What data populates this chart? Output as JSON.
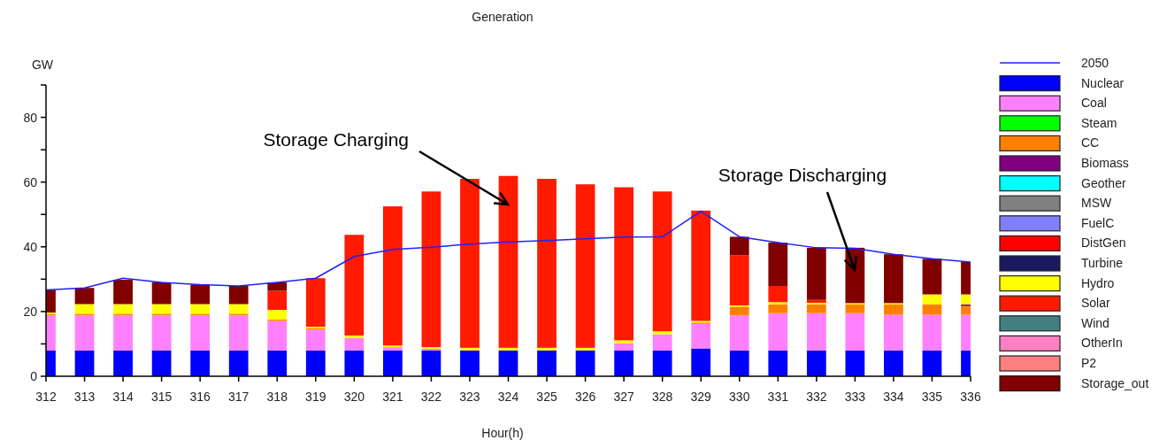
{
  "chart_data": {
    "type": "bar",
    "stacked": true,
    "title": "Generation",
    "xlabel": "Hour(h)",
    "ylabel": "GW",
    "categories": [
      "312",
      "313",
      "314",
      "315",
      "316",
      "317",
      "318",
      "319",
      "320",
      "321",
      "322",
      "323",
      "324",
      "325",
      "326",
      "327",
      "328",
      "329",
      "330",
      "331",
      "332",
      "333",
      "334",
      "335",
      "336"
    ],
    "ylim": [
      0,
      90
    ],
    "yticks": [
      0,
      {
        "value": 10,
        "label": null
      },
      20,
      {
        "value": 30,
        "label": null
      },
      40,
      {
        "value": 50,
        "label": null
      },
      60,
      {
        "value": 70,
        "label": null
      },
      80,
      {
        "value": 90,
        "label": null
      }
    ],
    "grid": false,
    "legend": "right",
    "series": [
      {
        "type": "line",
        "name": "2050",
        "color": "#2020ff",
        "values": [
          26.7,
          27.3,
          30.3,
          29.0,
          28.3,
          27.9,
          29.0,
          30.3,
          37.0,
          39.2,
          39.9,
          40.8,
          41.5,
          41.9,
          42.5,
          43.0,
          43.1,
          51.0,
          43.1,
          41.3,
          39.7,
          39.5,
          37.7,
          36.3,
          35.3
        ]
      },
      {
        "name": "Nuclear",
        "color": "#0000ff",
        "values": [
          8,
          8,
          8,
          8,
          8,
          8,
          8,
          8,
          8,
          8,
          8,
          8,
          8,
          8,
          8,
          8,
          8,
          8.6,
          8,
          8,
          8,
          8,
          8,
          8,
          8
        ]
      },
      {
        "name": "Coal",
        "color": "#ff80ff",
        "values": [
          10.8,
          10.8,
          10.8,
          10.8,
          10.8,
          10.8,
          9.1,
          6.4,
          3.8,
          1.0,
          0.5,
          0,
          0,
          0,
          0,
          2.2,
          5.0,
          7.6,
          10.8,
          11.5,
          11.5,
          11.5,
          11.0,
          11.0,
          11.0
        ]
      },
      {
        "name": "Steam",
        "color": "#00ff00",
        "values": [
          0,
          0,
          0,
          0,
          0,
          0,
          0,
          0,
          0,
          0,
          0,
          0,
          0,
          0,
          0,
          0,
          0,
          0,
          0,
          0,
          0,
          0,
          0,
          0,
          0
        ]
      },
      {
        "name": "CC",
        "color": "#ff8000",
        "values": [
          0.4,
          0.5,
          0.5,
          0.5,
          0.5,
          0.5,
          0.4,
          0.4,
          0,
          0,
          0,
          0,
          0,
          0,
          0,
          0,
          0,
          0.4,
          2.7,
          2.7,
          2.7,
          2.7,
          3.2,
          3.2,
          2.7
        ]
      },
      {
        "name": "Biomass",
        "color": "#800080",
        "values": [
          0,
          0,
          0,
          0,
          0,
          0,
          0,
          0,
          0,
          0,
          0,
          0,
          0,
          0,
          0,
          0,
          0,
          0,
          0,
          0,
          0,
          0,
          0,
          0,
          0.5
        ]
      },
      {
        "name": "Geother",
        "color": "#00ffff",
        "values": [
          0,
          0,
          0,
          0,
          0,
          0,
          0,
          0,
          0,
          0,
          0,
          0,
          0,
          0,
          0,
          0,
          0,
          0,
          0,
          0,
          0,
          0,
          0,
          0,
          0
        ]
      },
      {
        "name": "MSW",
        "color": "#808080",
        "values": [
          0,
          0,
          0,
          0,
          0,
          0,
          0,
          0,
          0,
          0,
          0,
          0,
          0,
          0,
          0,
          0,
          0,
          0,
          0,
          0,
          0,
          0,
          0,
          0,
          0
        ]
      },
      {
        "name": "FuelC",
        "color": "#8080ff",
        "values": [
          0,
          0,
          0,
          0,
          0,
          0,
          0,
          0,
          0,
          0,
          0,
          0,
          0,
          0,
          0,
          0,
          0,
          0,
          0,
          0,
          0,
          0,
          0,
          0,
          0
        ]
      },
      {
        "name": "DistGen",
        "color": "#ff0000",
        "values": [
          0,
          0,
          0,
          0,
          0,
          0,
          0,
          0,
          0,
          0,
          0,
          0,
          0,
          0,
          0,
          0,
          0,
          0,
          0,
          0,
          0,
          0,
          0,
          0,
          0
        ]
      },
      {
        "name": "Turbine",
        "color": "#1a1a60",
        "values": [
          0,
          0,
          0,
          0,
          0,
          0,
          0,
          0,
          0,
          0,
          0,
          0,
          0,
          0,
          0,
          0,
          0,
          0,
          0,
          0,
          0,
          0,
          0,
          0,
          0
        ]
      },
      {
        "name": "Hydro",
        "color": "#ffff00",
        "values": [
          0.5,
          3.0,
          3.0,
          3.0,
          3.0,
          3.0,
          3.0,
          0.5,
          0.8,
          0.5,
          0.5,
          0.8,
          0.8,
          0.8,
          0.8,
          0.9,
          0.9,
          0.5,
          0.4,
          0.7,
          0.5,
          0.4,
          0.4,
          3.1,
          3.1
        ]
      },
      {
        "name": "Solar",
        "color": "#ff1a00",
        "values": [
          0,
          0,
          0,
          0,
          0,
          0,
          5.9,
          15.0,
          31.1,
          43.0,
          48.1,
          52.2,
          53.1,
          52.2,
          50.5,
          47.3,
          43.2,
          34.1,
          15.5,
          5.0,
          0.9,
          0,
          0,
          0,
          0
        ]
      },
      {
        "name": "Wind",
        "color": "#408080",
        "values": [
          0,
          0,
          0,
          0,
          0,
          0,
          0,
          0,
          0,
          0,
          0,
          0,
          0,
          0,
          0,
          0,
          0,
          0,
          0,
          0,
          0,
          0,
          0,
          0,
          0
        ]
      },
      {
        "name": "OtherIn",
        "color": "#ff80c0",
        "values": [
          0,
          0,
          0,
          0,
          0,
          0,
          0,
          0,
          0,
          0,
          0,
          0,
          0,
          0,
          0,
          0,
          0,
          0,
          0,
          0,
          0,
          0,
          0,
          0,
          0
        ]
      },
      {
        "name": "P2",
        "color": "#ff8080",
        "values": [
          0,
          0,
          0,
          0,
          0,
          0,
          0,
          0,
          0,
          0,
          0,
          0,
          0,
          0,
          0,
          0,
          0,
          0,
          0,
          0,
          0,
          0,
          0,
          0,
          0
        ]
      },
      {
        "name": "Storage_out",
        "color": "#800000",
        "values": [
          7.0,
          5.0,
          7.5,
          6.7,
          6.0,
          5.6,
          2.6,
          0,
          0,
          0,
          0,
          0,
          0,
          0,
          0,
          0,
          0,
          0,
          5.7,
          13.4,
          16.1,
          17.1,
          15.1,
          11.0,
          10.0
        ]
      }
    ],
    "annotations": [
      "Storage Charging",
      "Storage Discharging"
    ]
  }
}
